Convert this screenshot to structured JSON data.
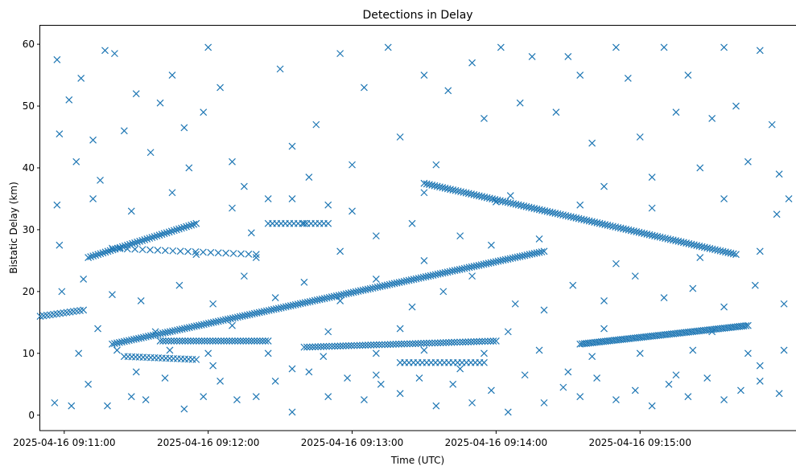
{
  "chart_data": {
    "type": "scatter",
    "title": "Detections in Delay",
    "xlabel": "Time (UTC)",
    "ylabel": "Bistatic Delay (km)",
    "x_ticks": [
      "2025-04-16 09:11:00",
      "2025-04-16 09:12:00",
      "2025-04-16 09:13:00",
      "2025-04-16 09:14:00",
      "2025-04-16 09:15:00"
    ],
    "y_ticks": [
      0,
      10,
      20,
      30,
      40,
      50,
      60
    ],
    "x_range_seconds": [
      -10,
      305
    ],
    "ylim": [
      -2.5,
      63
    ],
    "marker": "x",
    "color": "#1f77b4",
    "grid": false,
    "legend": "none",
    "tracks": [
      {
        "x_start": "2025-04-16 09:10:50",
        "x_end": "2025-04-16 09:11:08",
        "y_start": 16.0,
        "y_end": 17.0,
        "count": 14
      },
      {
        "x_start": "2025-04-16 09:11:10",
        "x_end": "2025-04-16 09:11:55",
        "y_start": 25.5,
        "y_end": 31.0,
        "count": 45
      },
      {
        "x_start": "2025-04-16 09:11:20",
        "x_end": "2025-04-16 09:12:20",
        "y_start": 27.0,
        "y_end": 26.0,
        "count": 20
      },
      {
        "x_start": "2025-04-16 09:11:20",
        "x_end": "2025-04-16 09:14:20",
        "y_start": 11.5,
        "y_end": 26.5,
        "count": 180
      },
      {
        "x_start": "2025-04-16 09:11:25",
        "x_end": "2025-04-16 09:11:55",
        "y_start": 9.5,
        "y_end": 9.0,
        "count": 20
      },
      {
        "x_start": "2025-04-16 09:11:40",
        "x_end": "2025-04-16 09:12:25",
        "y_start": 12.0,
        "y_end": 12.0,
        "count": 40
      },
      {
        "x_start": "2025-04-16 09:13:30",
        "x_end": "2025-04-16 09:15:40",
        "y_start": 37.5,
        "y_end": 26.0,
        "count": 120
      },
      {
        "x_start": "2025-04-16 09:12:40",
        "x_end": "2025-04-16 09:14:00",
        "y_start": 11.0,
        "y_end": 12.0,
        "count": 70
      },
      {
        "x_start": "2025-04-16 09:14:35",
        "x_end": "2025-04-16 09:15:45",
        "y_start": 11.5,
        "y_end": 14.5,
        "count": 80
      },
      {
        "x_start": "2025-04-16 09:13:20",
        "x_end": "2025-04-16 09:13:55",
        "y_start": 8.5,
        "y_end": 8.5,
        "count": 20
      },
      {
        "x_start": "2025-04-16 09:12:25",
        "x_end": "2025-04-16 09:12:50",
        "y_start": 31.0,
        "y_end": 31.0,
        "count": 15
      }
    ],
    "scatter_points": [
      [
        -3,
        57.5
      ],
      [
        -2,
        27.5
      ],
      [
        -2,
        45.5
      ],
      [
        2,
        51
      ],
      [
        5,
        41
      ],
      [
        7,
        54.5
      ],
      [
        12,
        44.5
      ],
      [
        15,
        38
      ],
      [
        17,
        59
      ],
      [
        21,
        58.5
      ],
      [
        25,
        46
      ],
      [
        30,
        52
      ],
      [
        36,
        42.5
      ],
      [
        40,
        50.5
      ],
      [
        45,
        55
      ],
      [
        50,
        46.5
      ],
      [
        52,
        40
      ],
      [
        58,
        49
      ],
      [
        60,
        59.5
      ],
      [
        65,
        53
      ],
      [
        70,
        41
      ],
      [
        75,
        37
      ],
      [
        78,
        29.5
      ],
      [
        85,
        35
      ],
      [
        90,
        56
      ],
      [
        95,
        43.5
      ],
      [
        100,
        31
      ],
      [
        102,
        38.5
      ],
      [
        105,
        47
      ],
      [
        110,
        34
      ],
      [
        115,
        58.5
      ],
      [
        120,
        40.5
      ],
      [
        125,
        53
      ],
      [
        130,
        29
      ],
      [
        135,
        59.5
      ],
      [
        140,
        45
      ],
      [
        145,
        31
      ],
      [
        150,
        55
      ],
      [
        155,
        40.5
      ],
      [
        160,
        52.5
      ],
      [
        165,
        29
      ],
      [
        170,
        57
      ],
      [
        175,
        48
      ],
      [
        178,
        27.5
      ],
      [
        182,
        59.5
      ],
      [
        186,
        35.5
      ],
      [
        190,
        50.5
      ],
      [
        195,
        58
      ],
      [
        198,
        28.5
      ],
      [
        205,
        49
      ],
      [
        210,
        58
      ],
      [
        215,
        55
      ],
      [
        220,
        44
      ],
      [
        225,
        37
      ],
      [
        230,
        59.5
      ],
      [
        235,
        54.5
      ],
      [
        240,
        45
      ],
      [
        245,
        38.5
      ],
      [
        250,
        59.5
      ],
      [
        255,
        49
      ],
      [
        260,
        55
      ],
      [
        265,
        40
      ],
      [
        270,
        48
      ],
      [
        275,
        59.5
      ],
      [
        280,
        50
      ],
      [
        285,
        41
      ],
      [
        290,
        59
      ],
      [
        295,
        47
      ],
      [
        298,
        39
      ],
      [
        302,
        35
      ],
      [
        -4,
        2
      ],
      [
        3,
        1.5
      ],
      [
        10,
        5
      ],
      [
        18,
        1.5
      ],
      [
        28,
        3
      ],
      [
        34,
        2.5
      ],
      [
        42,
        6
      ],
      [
        50,
        1
      ],
      [
        58,
        3
      ],
      [
        65,
        5.5
      ],
      [
        72,
        2.5
      ],
      [
        80,
        3
      ],
      [
        88,
        5.5
      ],
      [
        95,
        0.5
      ],
      [
        102,
        7
      ],
      [
        110,
        3
      ],
      [
        118,
        6
      ],
      [
        125,
        2.5
      ],
      [
        132,
        5
      ],
      [
        140,
        3.5
      ],
      [
        148,
        6
      ],
      [
        155,
        1.5
      ],
      [
        162,
        5
      ],
      [
        170,
        2
      ],
      [
        178,
        4
      ],
      [
        185,
        0.5
      ],
      [
        192,
        6.5
      ],
      [
        200,
        2
      ],
      [
        208,
        4.5
      ],
      [
        215,
        3
      ],
      [
        222,
        6
      ],
      [
        230,
        2.5
      ],
      [
        238,
        4
      ],
      [
        245,
        1.5
      ],
      [
        252,
        5
      ],
      [
        260,
        3
      ],
      [
        268,
        6
      ],
      [
        275,
        2.5
      ],
      [
        282,
        4
      ],
      [
        290,
        5.5
      ],
      [
        298,
        3.5
      ],
      [
        -1,
        20
      ],
      [
        8,
        22
      ],
      [
        20,
        19.5
      ],
      [
        32,
        18.5
      ],
      [
        48,
        21
      ],
      [
        62,
        18
      ],
      [
        75,
        22.5
      ],
      [
        88,
        19
      ],
      [
        100,
        21.5
      ],
      [
        115,
        18.5
      ],
      [
        130,
        22
      ],
      [
        145,
        17.5
      ],
      [
        158,
        20
      ],
      [
        170,
        22.5
      ],
      [
        188,
        18
      ],
      [
        200,
        17
      ],
      [
        212,
        21
      ],
      [
        225,
        18.5
      ],
      [
        238,
        22.5
      ],
      [
        250,
        19
      ],
      [
        262,
        20.5
      ],
      [
        275,
        17.5
      ],
      [
        288,
        21
      ],
      [
        300,
        18
      ],
      [
        30,
        7
      ],
      [
        62,
        8
      ],
      [
        95,
        7.5
      ],
      [
        130,
        6.5
      ],
      [
        165,
        7.5
      ],
      [
        210,
        7
      ],
      [
        255,
        6.5
      ],
      [
        290,
        8
      ],
      [
        -3,
        34
      ],
      [
        12,
        35
      ],
      [
        28,
        33
      ],
      [
        45,
        36
      ],
      [
        70,
        33.5
      ],
      [
        95,
        35
      ],
      [
        120,
        33
      ],
      [
        150,
        36
      ],
      [
        180,
        34.5
      ],
      [
        215,
        34
      ],
      [
        245,
        33.5
      ],
      [
        275,
        35
      ],
      [
        297,
        32.5
      ],
      [
        6,
        10
      ],
      [
        22,
        10.5
      ],
      [
        44,
        10.5
      ],
      [
        60,
        10
      ],
      [
        85,
        10
      ],
      [
        108,
        9.5
      ],
      [
        130,
        10
      ],
      [
        150,
        10.5
      ],
      [
        175,
        10
      ],
      [
        198,
        10.5
      ],
      [
        220,
        9.5
      ],
      [
        240,
        10
      ],
      [
        262,
        10.5
      ],
      [
        285,
        10
      ],
      [
        300,
        10.5
      ],
      [
        14,
        14
      ],
      [
        38,
        13.5
      ],
      [
        70,
        14.5
      ],
      [
        110,
        13.5
      ],
      [
        140,
        14
      ],
      [
        185,
        13.5
      ],
      [
        225,
        14
      ],
      [
        270,
        13.5
      ],
      [
        55,
        26
      ],
      [
        80,
        25.5
      ],
      [
        115,
        26.5
      ],
      [
        150,
        25
      ],
      [
        230,
        24.5
      ],
      [
        265,
        25.5
      ],
      [
        290,
        26.5
      ]
    ]
  }
}
